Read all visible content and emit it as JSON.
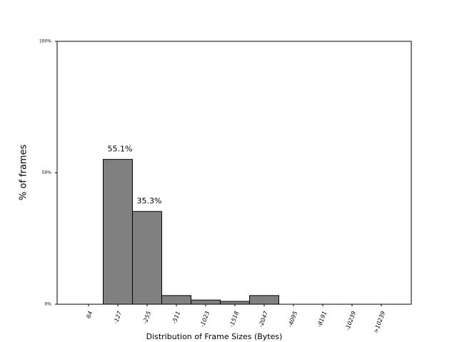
{
  "chart_data": {
    "type": "bar",
    "x_label": "Distribution of Frame Sizes (Bytes)",
    "y_label": "% of frames",
    "categories": [
      "64",
      "-127",
      "-255",
      "-511",
      "-1023",
      "-1518",
      "-2047",
      "-4095",
      "-8191",
      "-10239",
      ">10239"
    ],
    "values": [
      0,
      55.1,
      35.3,
      3.3,
      1.6,
      1.1,
      3.3,
      0,
      0,
      0,
      0
    ],
    "value_labels": [
      null,
      "55.1%",
      "35.3%",
      null,
      null,
      null,
      null,
      null,
      null,
      null,
      null
    ],
    "color": "#808080",
    "ylim": [
      0,
      100
    ],
    "yticks": [
      {
        "value": 0,
        "label": "0%"
      },
      {
        "value": 50,
        "label": "50%"
      },
      {
        "value": 100,
        "label": "100%"
      }
    ]
  }
}
